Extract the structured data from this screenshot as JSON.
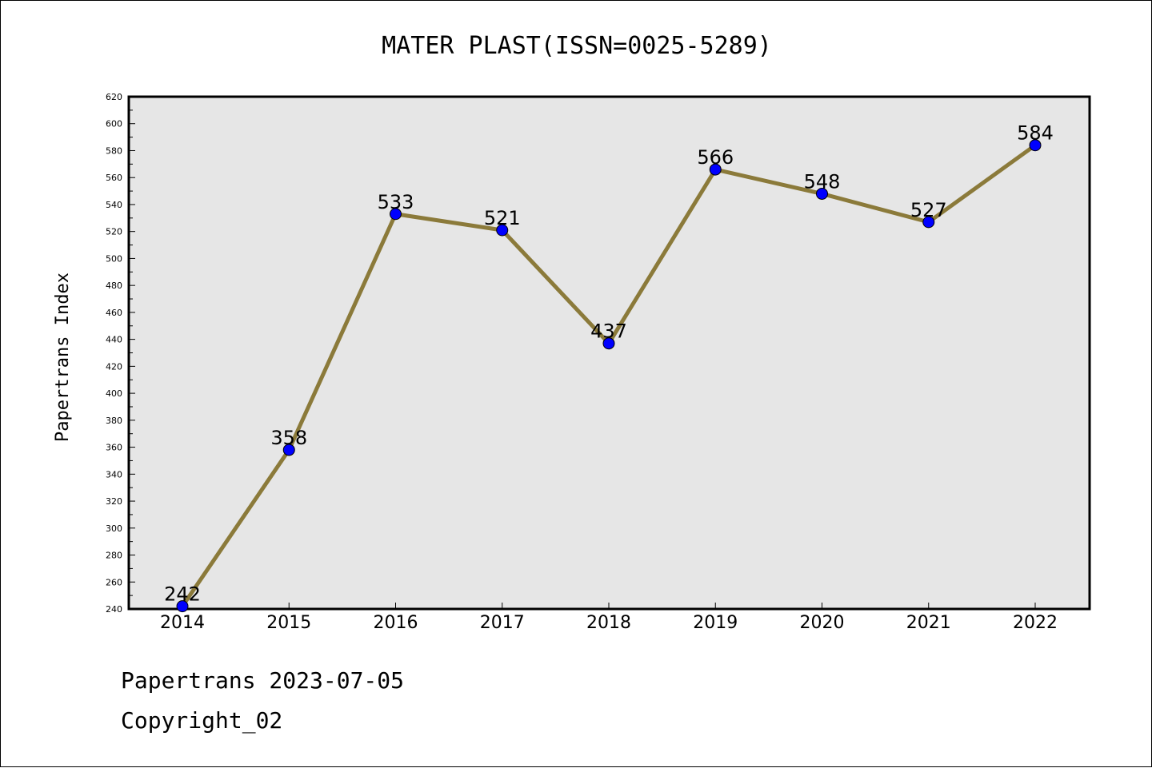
{
  "chart_data": {
    "type": "line",
    "title": "MATER PLAST(ISSN=0025-5289)",
    "xlabel": "",
    "ylabel": "Papertrans Index",
    "categories": [
      "2014",
      "2015",
      "2016",
      "2017",
      "2018",
      "2019",
      "2020",
      "2021",
      "2022"
    ],
    "series": [
      {
        "values": [
          242,
          358,
          533,
          521,
          437,
          566,
          548,
          527,
          584
        ]
      }
    ],
    "ylim": [
      240,
      620
    ],
    "yticks": [
      240,
      260,
      280,
      300,
      320,
      340,
      360,
      380,
      400,
      420,
      440,
      460,
      480,
      500,
      520,
      540,
      560,
      580,
      600,
      620
    ],
    "grid": false,
    "data_labels": true,
    "colors": {
      "line": "#8B7A3A",
      "marker": "#0000FF",
      "plot_background": "#E6E6E6"
    }
  },
  "footer": {
    "line1": "Papertrans 2023-07-05",
    "line2": "Copyright_02"
  }
}
